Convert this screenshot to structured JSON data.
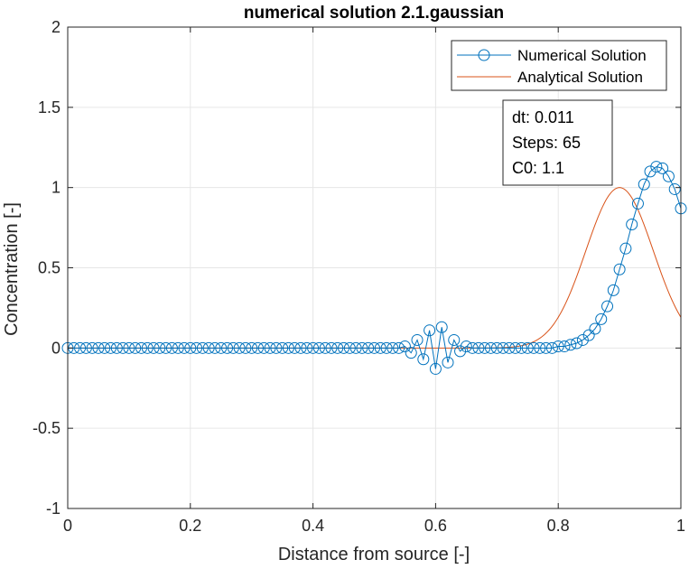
{
  "colors": {
    "numerical": "#0072BD",
    "analytical": "#D95319",
    "grid": "#e6e6e6",
    "axis": "#262626"
  },
  "chart_data": {
    "type": "line",
    "title": "numerical solution 2.1.gaussian",
    "xlabel": "Distance from source [-]",
    "ylabel": "Concentration [-]",
    "xlim": [
      0,
      1
    ],
    "ylim": [
      -1,
      2
    ],
    "xticks": [
      0,
      0.2,
      0.4,
      0.6,
      0.8,
      1
    ],
    "xtick_labels": [
      "0",
      "0.2",
      "0.4",
      "0.6",
      "0.8",
      "1"
    ],
    "yticks": [
      -1,
      -0.5,
      0,
      0.5,
      1,
      1.5,
      2
    ],
    "ytick_labels": [
      "-1",
      "-0.5",
      "0",
      "0.5",
      "1",
      "1.5",
      "2"
    ],
    "grid": true,
    "legend_position": "top-right",
    "annotation": [
      "dt: 0.011",
      "Steps: 65",
      "C0: 1.1"
    ],
    "series": [
      {
        "name": "Numerical Solution",
        "style": "line-circle",
        "x": [
          0,
          0.01,
          0.02,
          0.03,
          0.04,
          0.05,
          0.06,
          0.07,
          0.08,
          0.09,
          0.1,
          0.11,
          0.12,
          0.13,
          0.14,
          0.15,
          0.16,
          0.17,
          0.18,
          0.19,
          0.2,
          0.21,
          0.22,
          0.23,
          0.24,
          0.25,
          0.26,
          0.27,
          0.28,
          0.29,
          0.3,
          0.31,
          0.32,
          0.33,
          0.34,
          0.35,
          0.36,
          0.37,
          0.38,
          0.39,
          0.4,
          0.41,
          0.42,
          0.43,
          0.44,
          0.45,
          0.46,
          0.47,
          0.48,
          0.49,
          0.5,
          0.51,
          0.52,
          0.53,
          0.54,
          0.55,
          0.56,
          0.57,
          0.58,
          0.59,
          0.6,
          0.61,
          0.62,
          0.63,
          0.64,
          0.65,
          0.66,
          0.67,
          0.68,
          0.69,
          0.7,
          0.71,
          0.72,
          0.73,
          0.74,
          0.75,
          0.76,
          0.77,
          0.78,
          0.79,
          0.8,
          0.81,
          0.82,
          0.83,
          0.84,
          0.85,
          0.86,
          0.87,
          0.88,
          0.89,
          0.9,
          0.91,
          0.92,
          0.93,
          0.94,
          0.95,
          0.96,
          0.97,
          0.98,
          0.99,
          1
        ],
        "y": [
          0,
          0,
          0,
          0,
          0,
          0,
          0,
          0,
          0,
          0,
          0,
          0,
          0,
          0,
          0,
          0,
          0,
          0,
          0,
          0,
          0,
          0,
          0,
          0,
          0,
          0,
          0,
          0,
          0,
          0,
          0,
          0,
          0,
          0,
          0,
          0,
          0,
          0,
          0,
          0,
          0,
          0,
          0,
          0,
          0,
          0,
          0,
          0,
          0,
          0,
          0,
          0,
          0,
          0,
          0,
          0.01,
          -0.03,
          0.05,
          -0.07,
          0.11,
          -0.13,
          0.13,
          -0.09,
          0.05,
          -0.02,
          0.01,
          0,
          0,
          0,
          0,
          0,
          0,
          0,
          0,
          0,
          0,
          0,
          0,
          0,
          0,
          0.01,
          0.01,
          0.02,
          0.03,
          0.05,
          0.08,
          0.12,
          0.18,
          0.26,
          0.36,
          0.49,
          0.62,
          0.77,
          0.9,
          1.02,
          1.1,
          1.13,
          1.12,
          1.07,
          0.99,
          0.87
        ]
      },
      {
        "name": "Analytical Solution",
        "style": "line",
        "type": "gaussian",
        "peak": 1,
        "center": 0.9,
        "sigma": 0.055,
        "x_range": [
          0,
          1
        ]
      }
    ]
  }
}
